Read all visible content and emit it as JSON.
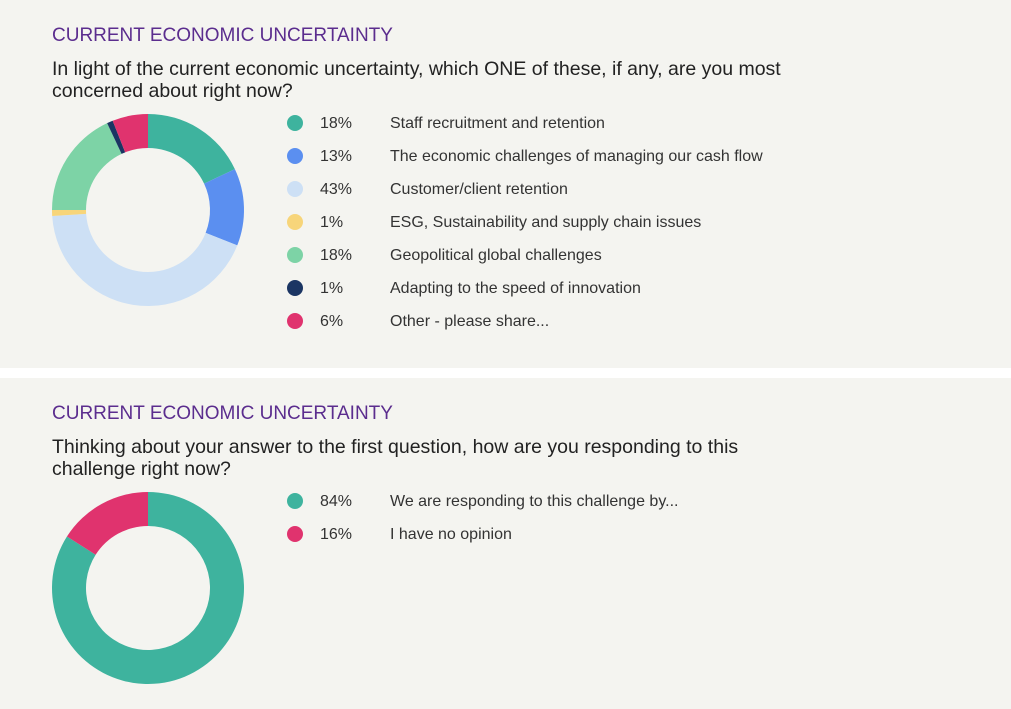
{
  "chart_data": [
    {
      "type": "donut",
      "title": "CURRENT ECONOMIC UNCERTAINTY",
      "subtitle": "In light of the current economic uncertainty, which ONE of these, if any, are you most concerned about right now?",
      "categories": [
        "Staff recruitment and retention",
        "The economic challenges of managing our cash flow",
        "Customer/client retention",
        "ESG, Sustainability and supply chain issues",
        "Geopolitical global challenges",
        "Adapting to the speed of innovation",
        "Other - please share..."
      ],
      "values": [
        18,
        13,
        43,
        1,
        18,
        1,
        6
      ],
      "value_labels": [
        "18%",
        "13%",
        "43%",
        "1%",
        "18%",
        "1%",
        "6%"
      ],
      "colors": [
        "#3eb39e",
        "#5b8ff0",
        "#cde0f5",
        "#f7d57a",
        "#7dd3a6",
        "#1b3563",
        "#e0336e"
      ]
    },
    {
      "type": "donut",
      "title": "CURRENT ECONOMIC UNCERTAINTY",
      "subtitle": "Thinking about your answer to the first question, how are you responding to this challenge right now?",
      "categories": [
        "We are responding to this challenge by...",
        "I have no opinion"
      ],
      "values": [
        84,
        16
      ],
      "value_labels": [
        "84%",
        "16%"
      ],
      "colors": [
        "#3eb39e",
        "#e0336e"
      ]
    }
  ]
}
